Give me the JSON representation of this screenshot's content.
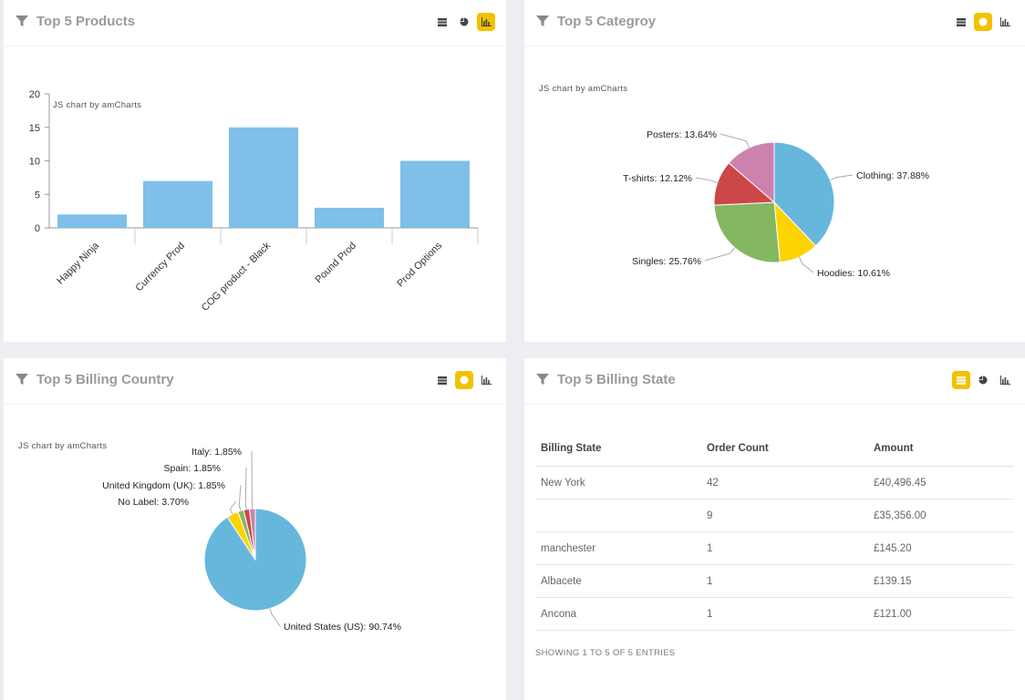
{
  "colors": {
    "accent": "#f2c200",
    "bar": "#7fbfe9"
  },
  "panels": {
    "products": {
      "title": "Top 5 Products",
      "credit": "JS chart by amCharts"
    },
    "category": {
      "title": "Top 5 Categroy",
      "credit": "JS chart by amCharts"
    },
    "country": {
      "title": "Top 5 Billing Country",
      "credit": "JS chart by amCharts"
    },
    "state": {
      "title": "Top 5 Billing State",
      "entries": "SHOWING 1 TO 5 OF 5 ENTRIES"
    }
  },
  "chart_data": [
    {
      "type": "bar",
      "categories": [
        "Happy Ninja",
        "Currency Prod",
        "COG product - Black",
        "Pound Prod",
        "Prod Options"
      ],
      "values": [
        2,
        7,
        15,
        3,
        10
      ],
      "ylim": [
        0,
        20
      ],
      "yticks": [
        0,
        5,
        10,
        15,
        20
      ]
    },
    {
      "type": "pie",
      "slices": [
        {
          "label": "Clothing",
          "value": 37.88,
          "color": "#67b7dc"
        },
        {
          "label": "Hoodies",
          "value": 10.61,
          "color": "#fdd400"
        },
        {
          "label": "Singles",
          "value": 25.76,
          "color": "#84b761"
        },
        {
          "label": "T-shirts",
          "value": 12.12,
          "color": "#cc4748"
        },
        {
          "label": "Posters",
          "value": 13.64,
          "color": "#cd82ad"
        }
      ]
    },
    {
      "type": "pie",
      "slices": [
        {
          "label": "United States (US)",
          "value": 90.74,
          "color": "#67b7dc"
        },
        {
          "label": "No Label",
          "value": 3.7,
          "color": "#fdd400"
        },
        {
          "label": "United Kingdom (UK)",
          "value": 1.85,
          "color": "#84b761"
        },
        {
          "label": "Spain",
          "value": 1.85,
          "color": "#cc4748"
        },
        {
          "label": "Italy",
          "value": 1.85,
          "color": "#cd82ad"
        }
      ]
    },
    {
      "type": "table",
      "columns": [
        "Billing State",
        "Order Count",
        "Amount"
      ],
      "rows": [
        [
          "New York",
          "42",
          "£40,496.45"
        ],
        [
          "",
          "9",
          "£35,356.00"
        ],
        [
          "manchester",
          "1",
          "£145.20"
        ],
        [
          "Albacete",
          "1",
          "£139.15"
        ],
        [
          "Ancona",
          "1",
          "£121.00"
        ]
      ]
    }
  ]
}
